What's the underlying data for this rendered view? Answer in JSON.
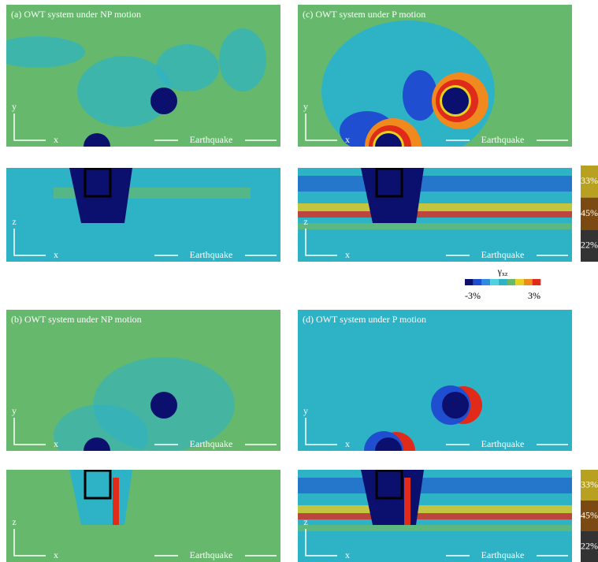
{
  "panels": [
    {
      "title": "(a) OWT system under NP motion",
      "y_label": "y",
      "x_label": "x",
      "arrow_label": "Earthquake"
    },
    {
      "title": "(c) OWT system under P motion",
      "y_label": "y",
      "x_label": "x",
      "arrow_label": "Earthquake"
    },
    {
      "z_label": "z",
      "x_label": "x",
      "arrow_label": "Earthquake"
    },
    {
      "z_label": "z",
      "x_label": "x",
      "arrow_label": "Earthquake"
    },
    {
      "title": "(b) OWT system under NP motion",
      "y_label": "y",
      "x_label": "x",
      "arrow_label": "Earthquake"
    },
    {
      "title": "(d) OWT system under P motion",
      "y_label": "y",
      "x_label": "x",
      "arrow_label": "Earthquake"
    },
    {
      "z_label": "z",
      "x_label": "x",
      "arrow_label": "Earthquake"
    },
    {
      "z_label": "z",
      "x_label": "x",
      "arrow_label": "Earthquake"
    }
  ],
  "colorbar": {
    "symbol": "γ",
    "subscript": "xz",
    "min_label": "-3%",
    "max_label": "3%"
  },
  "side_bars": [
    {
      "labels": [
        "33%",
        "45%",
        "22%"
      ]
    },
    {
      "labels": [
        "33%",
        "45%",
        "22%"
      ]
    }
  ]
}
